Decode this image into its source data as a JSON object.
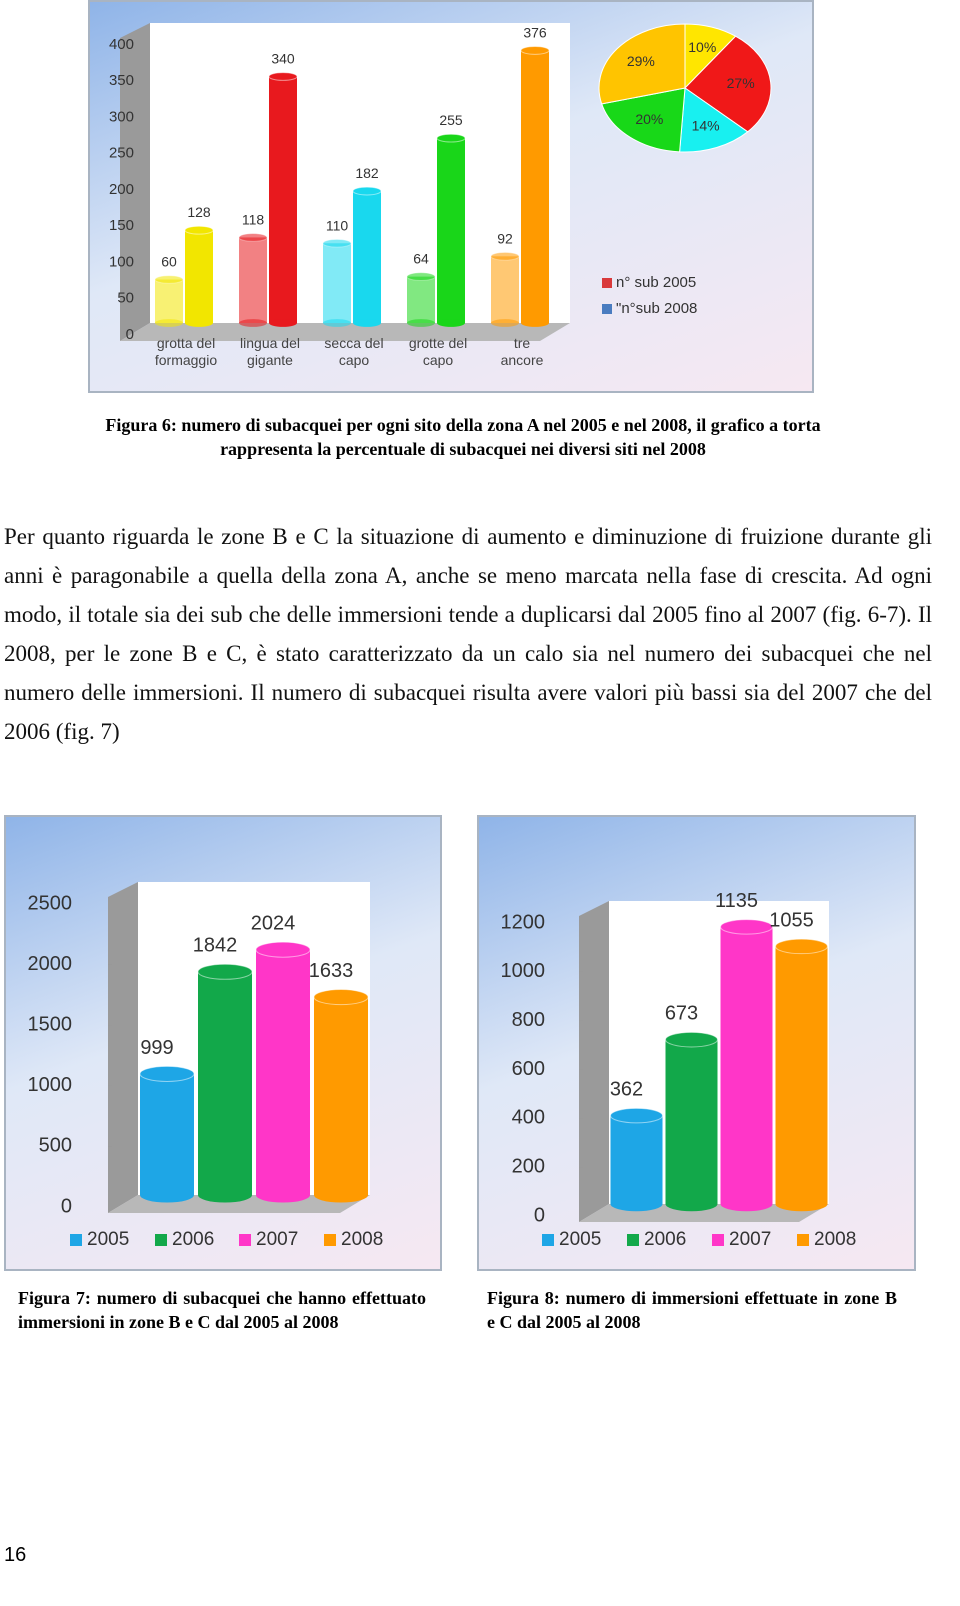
{
  "chart_data": [
    {
      "type": "bar",
      "categories": [
        "grotta del\nformaggio",
        "lingua del\ngigante",
        "secca del\ncapo",
        "grotte del\ncapo",
        "tre\nancore"
      ],
      "colors": [
        "#f2e600",
        "#e8191e",
        "#19d8ee",
        "#19d619",
        "#ff9a00"
      ],
      "series": [
        {
          "name": "n° sub 2005",
          "color": "#d9393b",
          "values": [
            60,
            118,
            110,
            64,
            92
          ]
        },
        {
          "name": "\"n°sub 2008",
          "color": "#4a7cc0",
          "values": [
            128,
            340,
            182,
            255,
            376
          ]
        }
      ],
      "ylim": [
        0,
        400
      ],
      "yticks": [
        0,
        50,
        100,
        150,
        200,
        250,
        300,
        350,
        400
      ]
    },
    {
      "type": "pie",
      "values": [
        10,
        27,
        14,
        20,
        29
      ],
      "value_labels": [
        "10%",
        "27%",
        "14%",
        "20%",
        "29%"
      ],
      "colors": [
        "#ffe600",
        "#f01818",
        "#18f0f0",
        "#18d818",
        "#ffc400"
      ]
    },
    {
      "type": "bar",
      "categories": [
        "2005",
        "2006",
        "2007",
        "2008"
      ],
      "colors": [
        "#1ea6e6",
        "#12a84a",
        "#ff36c8",
        "#ff9a00"
      ],
      "values": [
        999,
        1842,
        2024,
        1633
      ],
      "ylim": [
        0,
        2500
      ],
      "yticks": [
        0,
        500,
        1000,
        1500,
        2000,
        2500
      ]
    },
    {
      "type": "bar",
      "categories": [
        "2005",
        "2006",
        "2007",
        "2008"
      ],
      "colors": [
        "#1ea6e6",
        "#12a84a",
        "#ff36c8",
        "#ff9a00"
      ],
      "values": [
        362,
        673,
        1135,
        1055
      ],
      "ylim": [
        0,
        1200
      ],
      "yticks": [
        0,
        200,
        400,
        600,
        800,
        1000,
        1200
      ]
    }
  ],
  "captions": [
    "Figura 6: numero di subacquei per ogni sito della zona A nel 2005 e nel 2008, il grafico a torta rappresenta la percentuale di subacquei nei diversi siti nel 2008",
    "Figura 7: numero di subacquei che hanno effettuato immersioni in zone B e C dal 2005 al 2008",
    "Figura 8: numero di immersioni effettuate in zone B e C dal 2005 al 2008"
  ],
  "paragraph": "Per quanto riguarda le zone B e C la situazione di aumento e diminuzione di fruizione durante gli anni è paragonabile a quella della zona A, anche se meno marcata nella fase di crescita. Ad ogni modo, il totale sia dei sub che delle immersioni tende a duplicarsi dal 2005 fino al 2007 (fig. 6-7). Il 2008, per le zone B e C, è stato caratterizzato da un calo sia nel numero dei subacquei che nel numero delle immersioni. Il numero di subacquei risulta avere valori più bassi sia del 2007 che del 2006 (fig. 7)",
  "page_number": "16"
}
